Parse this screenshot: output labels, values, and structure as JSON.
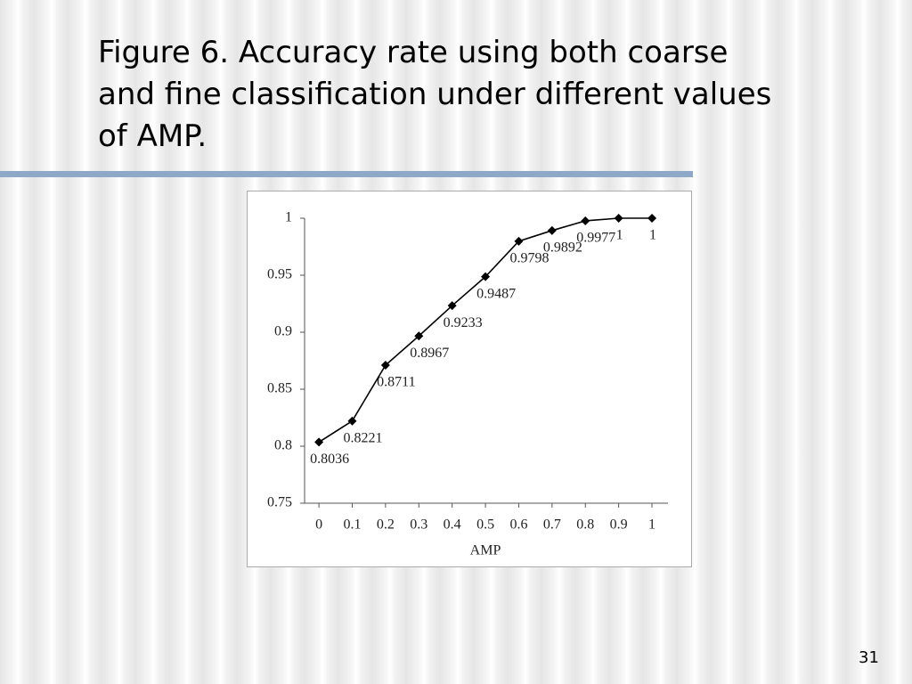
{
  "slide": {
    "title_lines": [
      "Figure 6. Accuracy rate using both coarse",
      "and fine classification under different values",
      "of AMP."
    ],
    "page": "31"
  },
  "chart_data": {
    "type": "line",
    "x_label": "AMP",
    "x": [
      0,
      0.1,
      0.2,
      0.3,
      0.4,
      0.5,
      0.6,
      0.7,
      0.8,
      0.9,
      1
    ],
    "series": [
      {
        "name": "Accuracy rate",
        "color": "#000000",
        "values": [
          0.8036,
          0.8221,
          0.8711,
          0.8967,
          0.9233,
          0.9487,
          0.9798,
          0.9892,
          0.9977,
          1,
          1
        ]
      }
    ],
    "xlim": [
      -0.043,
      1.048
    ],
    "xticks": [
      0,
      0.1,
      0.2,
      0.3,
      0.4,
      0.5,
      0.6,
      0.7,
      0.8,
      0.9,
      1
    ],
    "ylim": [
      0.75,
      1
    ],
    "yticks": [
      0.75,
      0.8,
      0.85,
      0.9,
      0.95,
      1
    ],
    "grid": false
  }
}
